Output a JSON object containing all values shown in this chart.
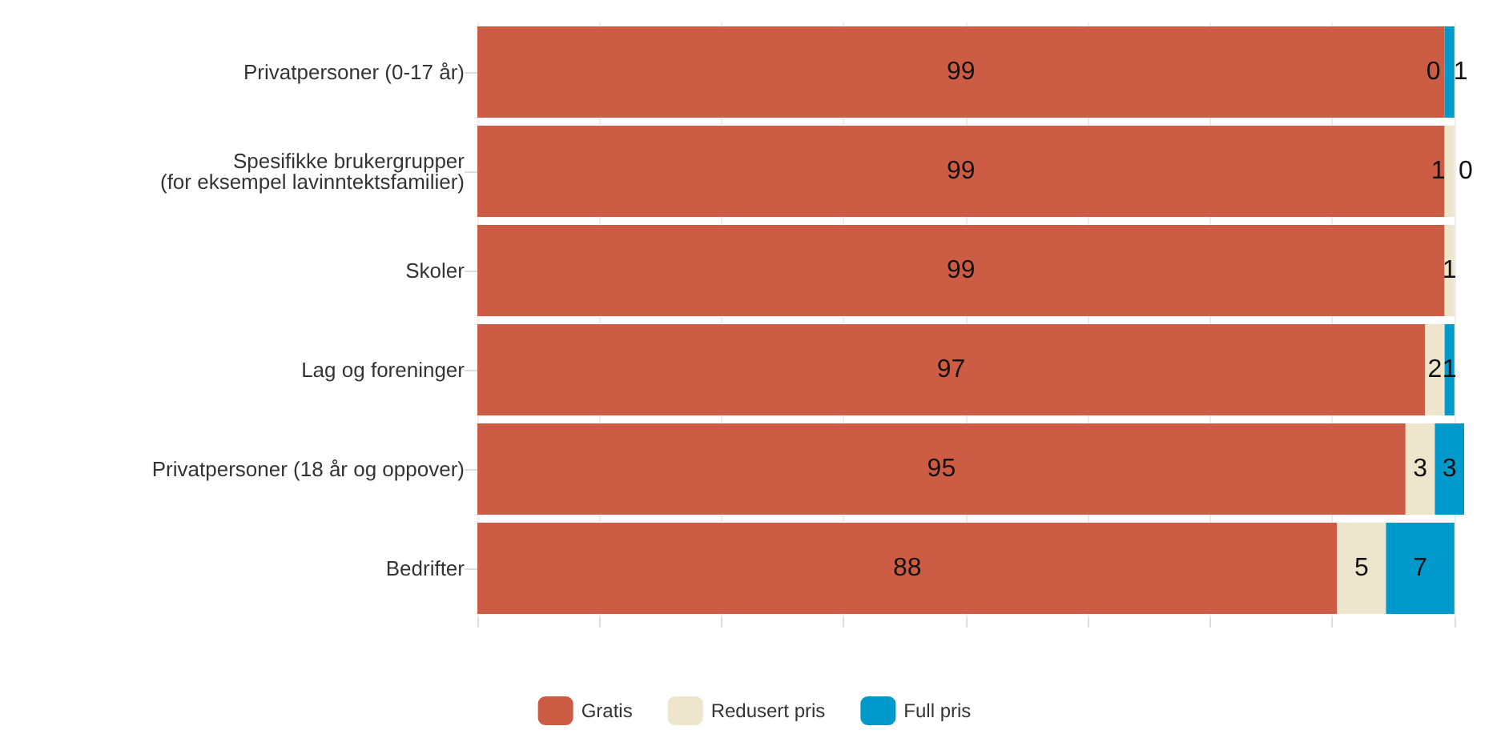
{
  "chart_data": {
    "type": "bar",
    "orientation": "horizontal",
    "stacked": true,
    "data_labels": true,
    "categories": [
      "Privatpersoner (0-17 år)",
      "Spesifikke brukergrupper\n(for eksempel lavinntektsfamilier)",
      "Skoler",
      "Lag og foreninger",
      "Privatpersoner (18 år og oppover)",
      "Bedrifter"
    ],
    "series": [
      {
        "name": "Gratis",
        "color": "#cd5c45",
        "values": [
          99,
          99,
          99,
          97,
          95,
          88
        ]
      },
      {
        "name": "Redusert pris",
        "color": "#ede6cc",
        "values": [
          0,
          1,
          1,
          2,
          3,
          5
        ]
      },
      {
        "name": "Full pris",
        "color": "#0099cc",
        "values": [
          1,
          0,
          null,
          1,
          3,
          7
        ]
      }
    ],
    "xlim": [
      0,
      101
    ],
    "xticks": [
      {
        "value": 0,
        "label": null
      },
      {
        "value": 12.5,
        "label": null
      },
      {
        "value": 25,
        "label": null
      },
      {
        "value": 37.5,
        "label": null
      },
      {
        "value": 50,
        "label": null
      },
      {
        "value": 62.5,
        "label": null
      },
      {
        "value": 75,
        "label": null
      },
      {
        "value": 87.5,
        "label": null
      },
      {
        "value": 100,
        "label": null
      }
    ],
    "tick_labels": "y",
    "grid": "x",
    "legend": "bottom"
  }
}
